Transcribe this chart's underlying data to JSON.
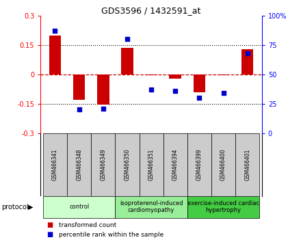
{
  "title": "GDS3596 / 1432591_at",
  "samples": [
    "GSM466341",
    "GSM466348",
    "GSM466349",
    "GSM466350",
    "GSM466351",
    "GSM466394",
    "GSM466399",
    "GSM466400",
    "GSM466401"
  ],
  "transformed_count": [
    0.2,
    -0.13,
    -0.155,
    0.135,
    -0.005,
    -0.02,
    -0.09,
    -0.005,
    0.13
  ],
  "percentile_rank": [
    87,
    20,
    21,
    80,
    37,
    36,
    30,
    34,
    68
  ],
  "ylim_left": [
    -0.3,
    0.3
  ],
  "ylim_right": [
    0,
    100
  ],
  "yticks_left": [
    -0.3,
    -0.15,
    0,
    0.15,
    0.3
  ],
  "yticks_right": [
    0,
    25,
    50,
    75,
    100
  ],
  "groups": [
    {
      "label": "control",
      "start": 0,
      "end": 3,
      "color": "#ccffcc"
    },
    {
      "label": "isoproterenol-induced\ncardiomyopathy",
      "start": 3,
      "end": 6,
      "color": "#99ee99"
    },
    {
      "label": "exercise-induced cardiac\nhypertrophy",
      "start": 6,
      "end": 9,
      "color": "#44cc44"
    }
  ],
  "bar_color": "#cc0000",
  "dot_color": "#0000cc",
  "bar_width": 0.5,
  "dot_size": 25,
  "zero_line_color": "#cc0000",
  "legend_red": "transformed count",
  "legend_blue": "percentile rank within the sample",
  "protocol_label": "protocol",
  "sample_box_color": "#cccccc",
  "background_color": "#ffffff"
}
